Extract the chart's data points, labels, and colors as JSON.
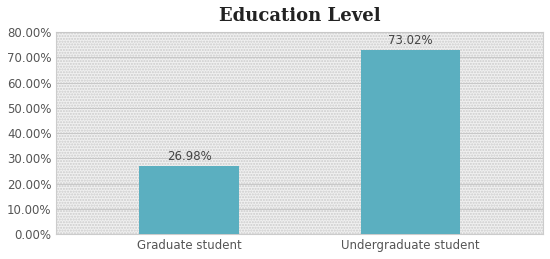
{
  "title": "Education Level",
  "categories": [
    "Graduate student",
    "Undergraduate student"
  ],
  "values": [
    26.98,
    73.02
  ],
  "bar_color": "#5BAFC0",
  "ylim": [
    0,
    80
  ],
  "yticks": [
    0,
    10,
    20,
    30,
    40,
    50,
    60,
    70,
    80
  ],
  "ytick_labels": [
    "0.00%",
    "10.00%",
    "20.00%",
    "30.00%",
    "40.00%",
    "50.00%",
    "60.00%",
    "70.00%",
    "80.00%"
  ],
  "background_color": "#F5F5F5",
  "plot_bg_color": "#F0F0F0",
  "grid_color": "#C8C8C8",
  "title_fontsize": 13,
  "label_fontsize": 8.5,
  "annotation_fontsize": 8.5,
  "bar_width": 0.45,
  "outer_bg": "#FFFFFF"
}
